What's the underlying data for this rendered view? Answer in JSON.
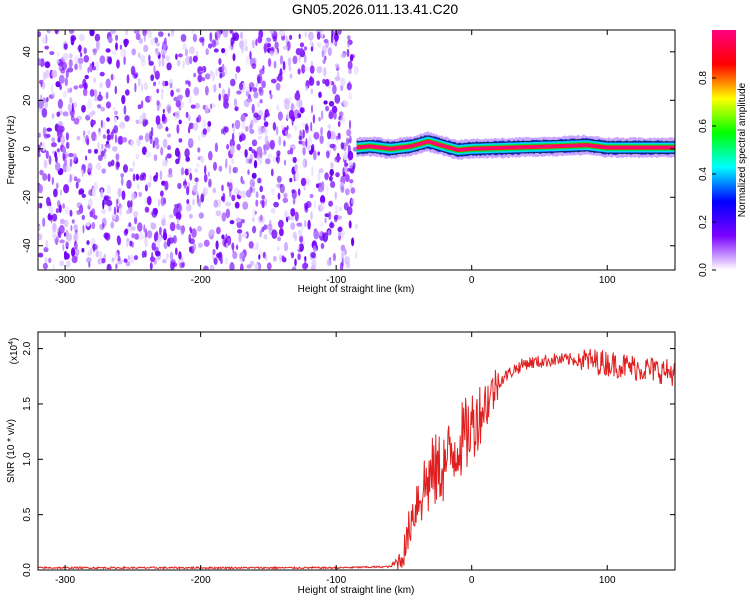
{
  "title": "GN05.2026.011.13.41.C20",
  "chart_data": [
    {
      "type": "heatmap",
      "title": "GN05.2026.011.13.41.C20",
      "xlabel": "Height of straight line (km)",
      "ylabel": "Frequency (Hz)",
      "xlim": [
        -320,
        150
      ],
      "ylim": [
        -50,
        49
      ],
      "x_ticks": [
        -300,
        -200,
        -100,
        0,
        100
      ],
      "y_ticks": [
        -40,
        -20,
        0,
        20,
        40
      ],
      "colorbar": {
        "label": "Normalized spectral amplitude",
        "range": [
          0,
          1
        ],
        "ticks": [
          "0.0",
          "0.2",
          "0.4",
          "0.6",
          "0.8"
        ],
        "colormap": [
          "#ffffff",
          "#7a00ff",
          "#0000ff",
          "#00ffff",
          "#00ff00",
          "#ffff00",
          "#ff0000",
          "#ff0080"
        ]
      },
      "regions": [
        {
          "x_range": [
            -320,
            -85
          ],
          "description_values": "scattered noise, amplitude ~0.1-0.3",
          "amplitude": 0.2
        },
        {
          "x_range": [
            -85,
            150
          ],
          "frequency_center": 0.5,
          "band_halfwidth_hz": 2.5,
          "peak_amplitude": 1.0
        }
      ],
      "band_center_trace": [
        {
          "x": -85,
          "y": 0.5
        },
        {
          "x": -75,
          "y": 1
        },
        {
          "x": -60,
          "y": 0
        },
        {
          "x": -45,
          "y": 1
        },
        {
          "x": -32,
          "y": 3
        },
        {
          "x": -20,
          "y": 1
        },
        {
          "x": -10,
          "y": -0.5
        },
        {
          "x": 0,
          "y": 0
        },
        {
          "x": 30,
          "y": 0.5
        },
        {
          "x": 60,
          "y": 1
        },
        {
          "x": 85,
          "y": 1.5
        },
        {
          "x": 100,
          "y": 0.5
        },
        {
          "x": 150,
          "y": 0.5
        }
      ]
    },
    {
      "type": "line",
      "xlabel": "Height of straight line (km)",
      "ylabel": "SNR (10 * v/v)",
      "y_multiplier": "(x10",
      "y_multiplier_exp": "4",
      "xlim": [
        -320,
        150
      ],
      "ylim": [
        0,
        2.15
      ],
      "x_ticks": [
        -300,
        -200,
        -100,
        0,
        100
      ],
      "y_ticks": [
        "0.0",
        "0.5",
        "1.0",
        "1.5",
        "2.0"
      ],
      "series": [
        {
          "color": "#e02020",
          "x": [
            -320,
            -100,
            -60,
            -52,
            -48,
            -45,
            -40,
            -35,
            -30,
            -25,
            -20,
            -15,
            -10,
            -5,
            0,
            5,
            10,
            15,
            20,
            30,
            40,
            50,
            60,
            80,
            100,
            120,
            140,
            150
          ],
          "y": [
            0.02,
            0.02,
            0.03,
            0.1,
            0.25,
            0.45,
            0.65,
            0.75,
            0.85,
            0.9,
            0.95,
            1.05,
            1.15,
            1.2,
            1.3,
            1.4,
            1.5,
            1.6,
            1.7,
            1.8,
            1.87,
            1.88,
            1.9,
            1.9,
            1.87,
            1.83,
            1.8,
            1.78
          ]
        }
      ]
    }
  ]
}
